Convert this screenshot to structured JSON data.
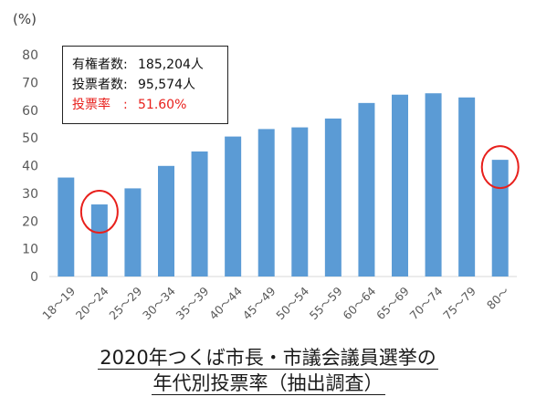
{
  "chart_data": {
    "type": "bar",
    "unit_label": "(%)",
    "categories": [
      "18～19",
      "20～24",
      "25～29",
      "30～34",
      "35～39",
      "40～44",
      "45～49",
      "50～54",
      "55～59",
      "60～64",
      "65～69",
      "70～74",
      "75～79",
      "80～"
    ],
    "values": [
      35.7,
      26.0,
      31.8,
      39.9,
      45.1,
      50.5,
      53.2,
      53.8,
      57.0,
      62.6,
      65.6,
      66.1,
      64.6,
      42.1
    ],
    "ylim": [
      0,
      80
    ],
    "yticks": [
      0,
      10,
      20,
      30,
      40,
      50,
      60,
      70,
      80
    ],
    "bar_color": "#5b9bd5",
    "highlight_color": "#e8201c",
    "highlighted_categories": [
      "20～24",
      "80～"
    ],
    "grid": false,
    "legend": "none"
  },
  "info_box": {
    "eligible_label": "有権者数:",
    "eligible_value": "185,204人",
    "voters_label": "投票者数:",
    "voters_value": "95,574人",
    "turnout_label": "投票率　:",
    "turnout_value": "51.60%"
  },
  "caption": {
    "line1": "2020年つくば市長・市議会議員選挙の",
    "line2": "年代別投票率（抽出調査）"
  }
}
